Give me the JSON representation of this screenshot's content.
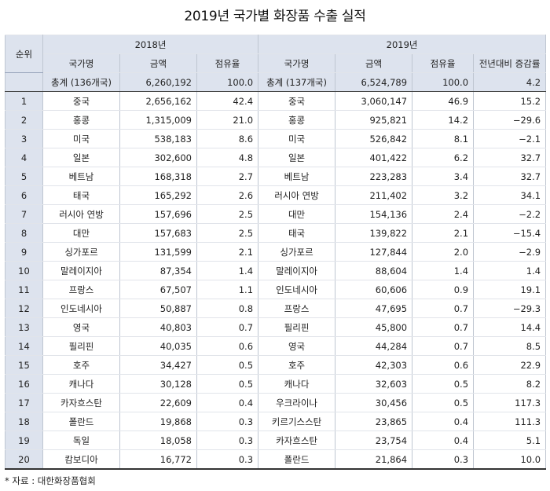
{
  "title": "2019년 국가별 화장품 수출 실적",
  "header": {
    "rank": "순위",
    "year2018": "2018년",
    "year2019": "2019년",
    "cols2018": [
      "국가명",
      "금액",
      "점유율"
    ],
    "cols2019": [
      "국가명",
      "금액",
      "점유율",
      "전년대비 증감률"
    ]
  },
  "total": {
    "country2018": "총계 (136개국)",
    "amount2018": "6,260,192",
    "share2018": "100.0",
    "country2019": "총계 (137개국)",
    "amount2019": "6,524,789",
    "share2019": "100.0",
    "growth": "4.2"
  },
  "rows": [
    {
      "rank": "1",
      "c18": "중국",
      "a18": "2,656,162",
      "s18": "42.4",
      "c19": "중국",
      "a19": "3,060,147",
      "s19": "46.9",
      "g": "15.2"
    },
    {
      "rank": "2",
      "c18": "홍콩",
      "a18": "1,315,009",
      "s18": "21.0",
      "c19": "홍콩",
      "a19": "925,821",
      "s19": "14.2",
      "g": "−29.6"
    },
    {
      "rank": "3",
      "c18": "미국",
      "a18": "538,183",
      "s18": "8.6",
      "c19": "미국",
      "a19": "526,842",
      "s19": "8.1",
      "g": "−2.1"
    },
    {
      "rank": "4",
      "c18": "일본",
      "a18": "302,600",
      "s18": "4.8",
      "c19": "일본",
      "a19": "401,422",
      "s19": "6.2",
      "g": "32.7"
    },
    {
      "rank": "5",
      "c18": "베트남",
      "a18": "168,318",
      "s18": "2.7",
      "c19": "베트남",
      "a19": "223,283",
      "s19": "3.4",
      "g": "32.7"
    },
    {
      "rank": "6",
      "c18": "태국",
      "a18": "165,292",
      "s18": "2.6",
      "c19": "러시아 연방",
      "a19": "211,402",
      "s19": "3.2",
      "g": "34.1"
    },
    {
      "rank": "7",
      "c18": "러시아 연방",
      "a18": "157,696",
      "s18": "2.5",
      "c19": "대만",
      "a19": "154,136",
      "s19": "2.4",
      "g": "−2.2"
    },
    {
      "rank": "8",
      "c18": "대만",
      "a18": "157,683",
      "s18": "2.5",
      "c19": "태국",
      "a19": "139,822",
      "s19": "2.1",
      "g": "−15.4"
    },
    {
      "rank": "9",
      "c18": "싱가포르",
      "a18": "131,599",
      "s18": "2.1",
      "c19": "싱가포르",
      "a19": "127,844",
      "s19": "2.0",
      "g": "−2.9"
    },
    {
      "rank": "10",
      "c18": "말레이지아",
      "a18": "87,354",
      "s18": "1.4",
      "c19": "말레이지아",
      "a19": "88,604",
      "s19": "1.4",
      "g": "1.4"
    },
    {
      "rank": "11",
      "c18": "프랑스",
      "a18": "67,507",
      "s18": "1.1",
      "c19": "인도네시아",
      "a19": "60,606",
      "s19": "0.9",
      "g": "19.1"
    },
    {
      "rank": "12",
      "c18": "인도네시아",
      "a18": "50,887",
      "s18": "0.8",
      "c19": "프랑스",
      "a19": "47,695",
      "s19": "0.7",
      "g": "−29.3"
    },
    {
      "rank": "13",
      "c18": "영국",
      "a18": "40,803",
      "s18": "0.7",
      "c19": "필리핀",
      "a19": "45,800",
      "s19": "0.7",
      "g": "14.4"
    },
    {
      "rank": "14",
      "c18": "필리핀",
      "a18": "40,035",
      "s18": "0.6",
      "c19": "영국",
      "a19": "44,284",
      "s19": "0.7",
      "g": "8.5"
    },
    {
      "rank": "15",
      "c18": "호주",
      "a18": "34,427",
      "s18": "0.5",
      "c19": "호주",
      "a19": "42,303",
      "s19": "0.6",
      "g": "22.9"
    },
    {
      "rank": "16",
      "c18": "캐나다",
      "a18": "30,128",
      "s18": "0.5",
      "c19": "캐나다",
      "a19": "32,603",
      "s19": "0.5",
      "g": "8.2"
    },
    {
      "rank": "17",
      "c18": "카자흐스탄",
      "a18": "22,609",
      "s18": "0.4",
      "c19": "우크라이나",
      "a19": "30,456",
      "s19": "0.5",
      "g": "117.3"
    },
    {
      "rank": "18",
      "c18": "폴란드",
      "a18": "19,868",
      "s18": "0.3",
      "c19": "키르기스스탄",
      "a19": "23,865",
      "s19": "0.4",
      "g": "111.3"
    },
    {
      "rank": "19",
      "c18": "독일",
      "a18": "18,058",
      "s18": "0.3",
      "c19": "카자흐스탄",
      "a19": "23,754",
      "s19": "0.4",
      "g": "5.1"
    },
    {
      "rank": "20",
      "c18": "캄보디아",
      "a18": "16,772",
      "s18": "0.3",
      "c19": "폴란드",
      "a19": "21,864",
      "s19": "0.3",
      "g": "10.0"
    }
  ],
  "source": "* 자료 : 대한화장품협회",
  "colors": {
    "header_bg": "#dde3ee",
    "border": "#bfc6d1",
    "rule": "#333333"
  }
}
